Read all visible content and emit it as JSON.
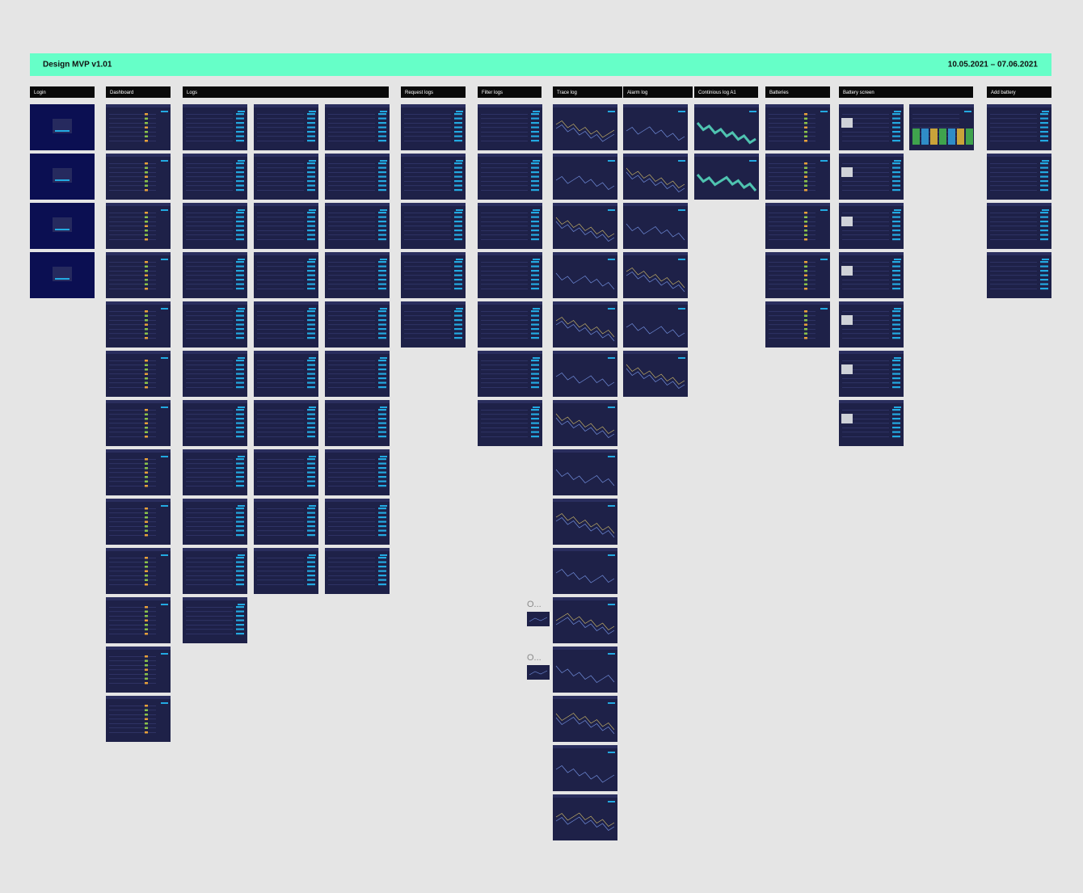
{
  "header": {
    "title": "Design MVP v1.01",
    "dates": "10.05.2021 – 07.06.2021"
  },
  "sections": [
    "Login",
    "Dashboard",
    "Logs",
    "Request logs",
    "Filter logs",
    "Trace log",
    "Alarm log",
    "Continious log A1",
    "Batteries",
    "Battery screen",
    "Add battery"
  ],
  "notes": [
    "O...",
    "O..."
  ]
}
